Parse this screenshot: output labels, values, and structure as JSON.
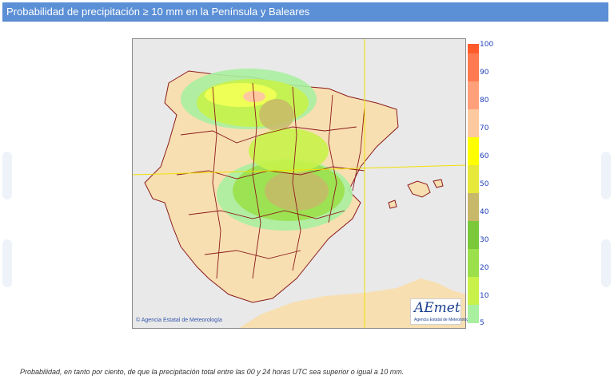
{
  "header": {
    "title": "Probabilidad de precipitación ≥ 10 mm en la Península y Baleares"
  },
  "map": {
    "credit_text": "Agencia Estatal de Meteorología",
    "credit_icon": "copyright-icon",
    "logo_mark": "AEmet",
    "logo_sub": "Agencia Estatal de Meteorología"
  },
  "legend": {
    "labels": [
      "100",
      "90",
      "80",
      "70",
      "60",
      "50",
      "40",
      "30",
      "20",
      "10",
      "5"
    ],
    "colors": [
      "#ff5a2a",
      "#ff7a50",
      "#ffa07a",
      "#ffc9a0",
      "#ffff00",
      "#e6e83a",
      "#c8b86a",
      "#7bc83a",
      "#9be04a",
      "#c8f24a",
      "#eeff55",
      "#a8f0a0"
    ]
  },
  "footnote": "Probabilidad, en tanto por ciento, de que la precipitación total entre las 00 y 24 horas UTC sea superior o igual a 10 mm.",
  "colors": {
    "header_bg": "#5b8fd6",
    "land": "#f7dfb2",
    "sea": "#e9e9e9",
    "borders": "#8b1a1a",
    "grid_lines": "#f0e000"
  }
}
